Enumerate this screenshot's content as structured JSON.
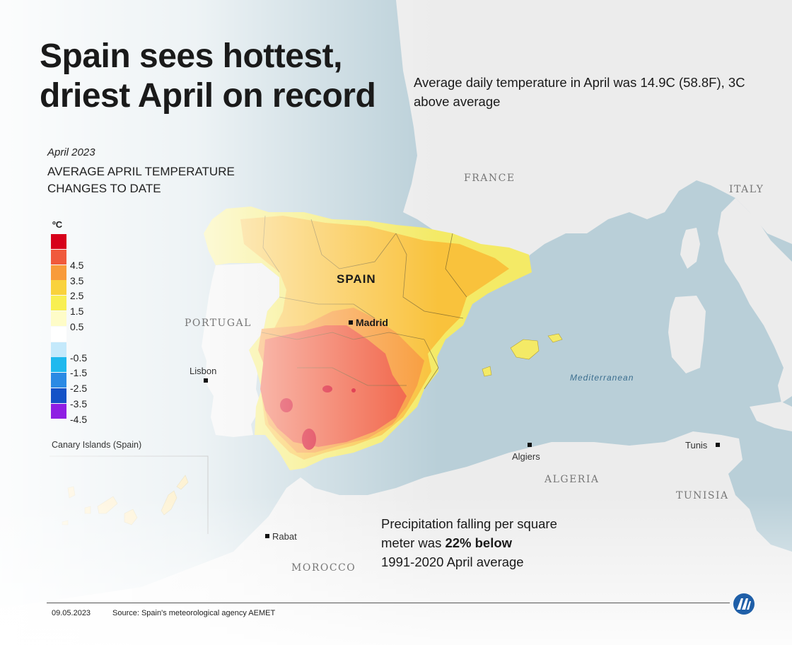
{
  "title": {
    "line1": "Spain sees hottest,",
    "line2": "driest April on record"
  },
  "subtitle": "Average daily temperature in April was 14.9C (58.8F), 3C above average",
  "map_heading": {
    "date": "April  2023",
    "line1": "AVERAGE APRIL TEMPERATURE",
    "line2": "CHANGES TO DATE"
  },
  "legend": {
    "unit": "ºC",
    "items": [
      {
        "label": "",
        "color": "#d7001a"
      },
      {
        "label": "4.5",
        "color": "#f05a3c"
      },
      {
        "label": "3.5",
        "color": "#f89b3a"
      },
      {
        "label": "2.5",
        "color": "#f9d23c"
      },
      {
        "label": "1.5",
        "color": "#f8ef52"
      },
      {
        "label": "0.5",
        "color": "#fefcc8"
      },
      {
        "label": "",
        "color": "#ffffff"
      },
      {
        "label": "-0.5",
        "color": "#c4e9fb"
      },
      {
        "label": "-1.5",
        "color": "#1eb9ee"
      },
      {
        "label": "-2.5",
        "color": "#2a8ae4"
      },
      {
        "label": "-3.5",
        "color": "#1452c7"
      },
      {
        "label": "-4.5",
        "color": "#8f1ee3"
      }
    ]
  },
  "labels": {
    "france": "FRANCE",
    "italy": "ITALY",
    "portugal": "PORTUGAL",
    "spain": "SPAIN",
    "algeria": "ALGERIA",
    "tunisia": "TUNISIA",
    "morocco": "MOROCCO",
    "mediterranean": "Mediterranean",
    "madrid": "Madrid",
    "lisbon": "Lisbon",
    "algiers": "Algiers",
    "tunis": "Tunis",
    "rabat": "Rabat"
  },
  "canary_label": "Canary Islands (Spain)",
  "precip": {
    "line1": "Precipitation falling per square",
    "line2_prefix": "meter was ",
    "line2_bold": "22% below",
    "line3": "1991-2020 April average"
  },
  "footer": {
    "date": "09.05.2023",
    "source": "Source: Spain's meteorological agency AEMET"
  },
  "colors": {
    "sea": "#b9cfd8",
    "land": "#ececec",
    "accent_dark": "#1a1a1a"
  },
  "logo_icon": "aa-logo-icon"
}
